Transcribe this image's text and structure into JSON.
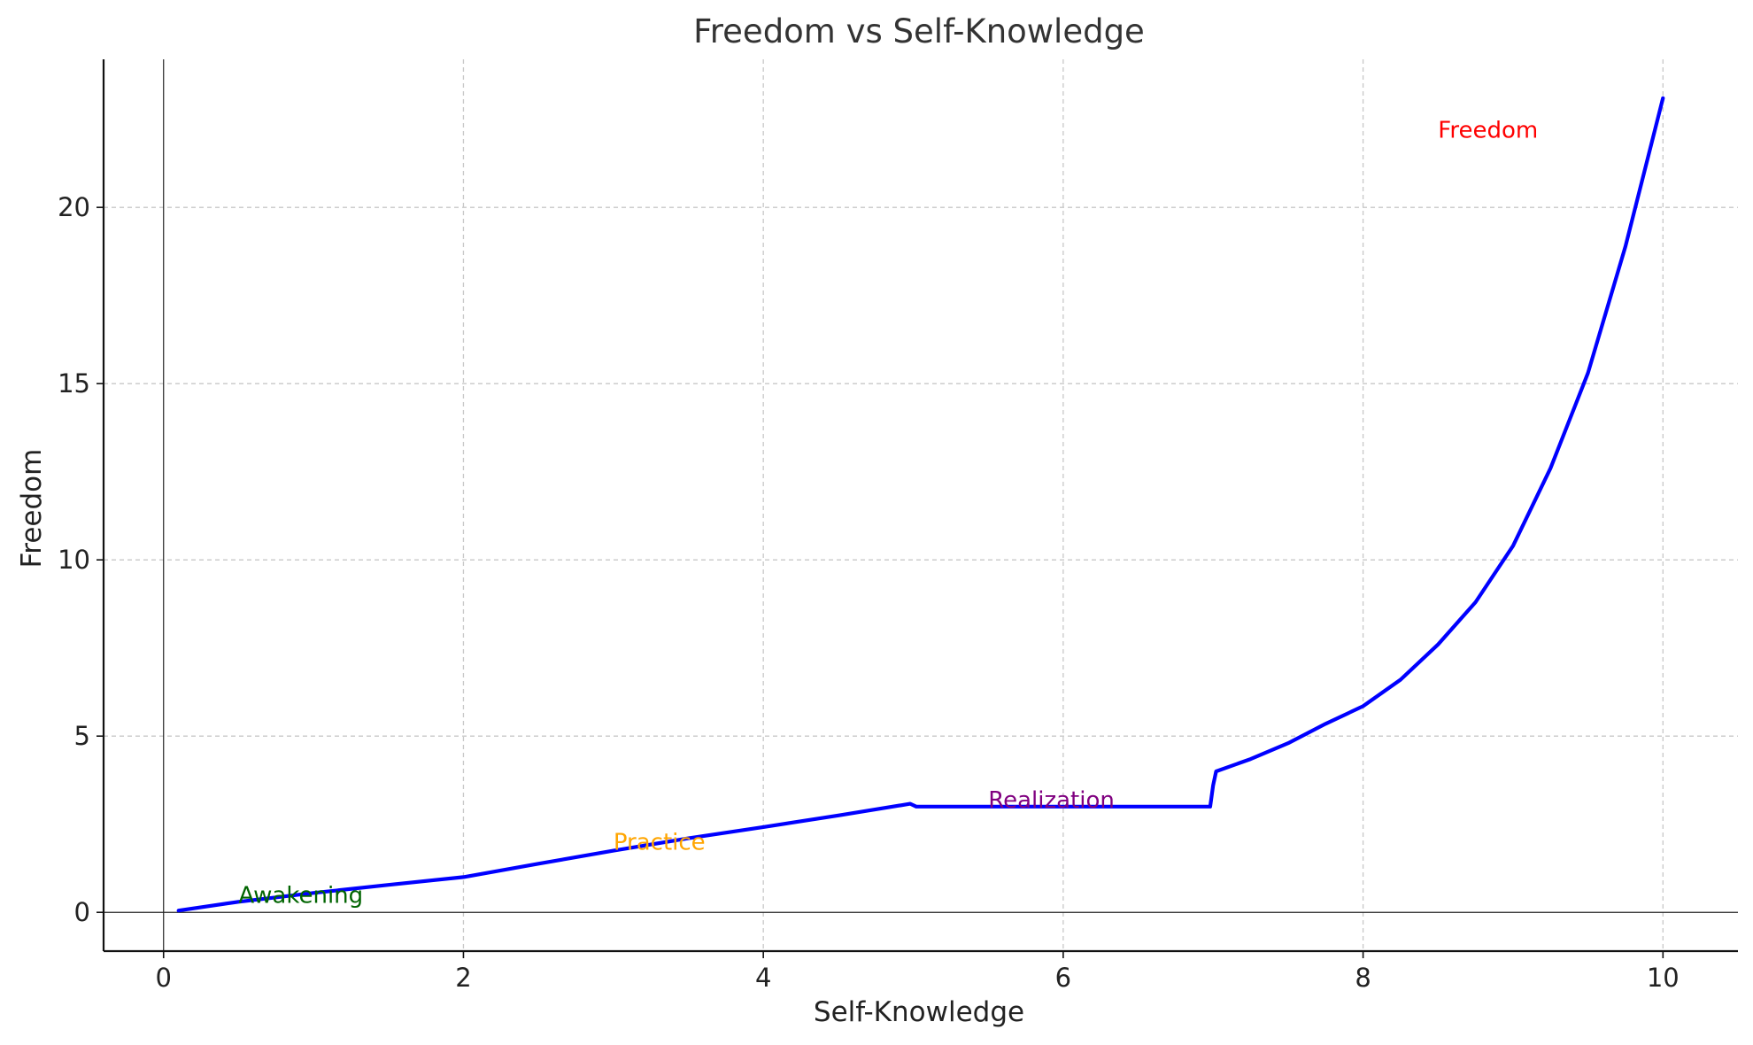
{
  "chart_data": {
    "type": "line",
    "title": "Freedom vs Self-Knowledge",
    "xlabel": "Self-Knowledge",
    "ylabel": "Freedom",
    "xlim": [
      -0.4,
      10.5
    ],
    "ylim": [
      -1.1,
      24.2
    ],
    "x_ticks": [
      0,
      2,
      4,
      6,
      8,
      10
    ],
    "y_ticks": [
      0,
      5,
      10,
      15,
      20
    ],
    "grid": true,
    "line_color": "#0000ff",
    "series": [
      {
        "x": [
          0.1,
          0.5,
          1.0,
          1.5,
          2.0,
          2.5,
          3.0,
          3.5,
          4.0,
          4.5,
          4.98,
          5.02,
          5.5,
          6.0,
          6.5,
          6.98,
          7.0,
          7.02,
          7.25,
          7.5,
          7.75,
          8.0,
          8.25,
          8.5,
          8.75,
          9.0,
          9.25,
          9.5,
          9.75,
          10.0
        ],
        "y": [
          0.05,
          0.3,
          0.55,
          0.78,
          1.0,
          1.38,
          1.75,
          2.1,
          2.42,
          2.75,
          3.08,
          3.0,
          3.0,
          3.0,
          3.0,
          3.0,
          3.6,
          4.0,
          4.35,
          4.8,
          5.35,
          5.85,
          6.6,
          7.6,
          8.8,
          10.4,
          12.6,
          15.3,
          18.9,
          23.1
        ]
      }
    ],
    "annotations": [
      {
        "text": "Awakening",
        "x": 0.5,
        "y": 0.5,
        "color": "#006400"
      },
      {
        "text": "Practice",
        "x": 3.0,
        "y": 2.0,
        "color": "#ffa500"
      },
      {
        "text": "Realization",
        "x": 5.5,
        "y": 3.2,
        "color": "#800080"
      },
      {
        "text": "Freedom",
        "x": 8.5,
        "y": 22.2,
        "color": "#ff0000"
      }
    ]
  }
}
